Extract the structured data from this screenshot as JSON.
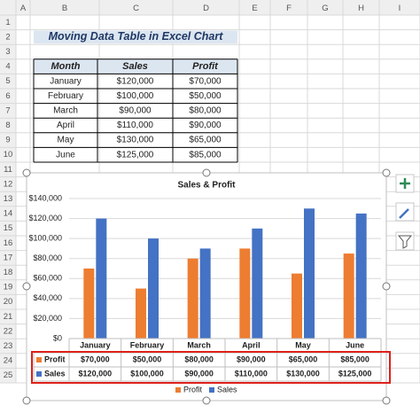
{
  "sheet": {
    "columns": [
      "A",
      "B",
      "C",
      "D",
      "E",
      "F",
      "G",
      "H",
      "I"
    ],
    "rows": [
      1,
      2,
      3,
      4,
      5,
      6,
      7,
      8,
      9,
      10,
      11,
      12,
      13,
      14,
      15,
      16,
      17,
      18,
      19,
      20,
      21,
      22,
      23,
      24,
      25
    ]
  },
  "title": "Moving Data Table in Excel Chart",
  "table": {
    "header": [
      "Month",
      "Sales",
      "Profit"
    ],
    "rows": [
      [
        "January",
        "$120,000",
        "$70,000"
      ],
      [
        "February",
        "$100,000",
        "$50,000"
      ],
      [
        "March",
        "$90,000",
        "$80,000"
      ],
      [
        "April",
        "$110,000",
        "$90,000"
      ],
      [
        "May",
        "$130,000",
        "$65,000"
      ],
      [
        "June",
        "$125,000",
        "$85,000"
      ]
    ]
  },
  "chart_data": {
    "type": "bar",
    "title": "Sales & Profit",
    "categories": [
      "January",
      "February",
      "March",
      "April",
      "May",
      "June"
    ],
    "series": [
      {
        "name": "Profit",
        "color": "#ed7d31",
        "values": [
          70000,
          50000,
          80000,
          90000,
          65000,
          85000
        ],
        "value_labels": [
          "$70,000",
          "$50,000",
          "$80,000",
          "$90,000",
          "$65,000",
          "$85,000"
        ]
      },
      {
        "name": "Sales",
        "color": "#4472c4",
        "values": [
          120000,
          100000,
          90000,
          110000,
          130000,
          125000
        ],
        "value_labels": [
          "$120,000",
          "$100,000",
          "$90,000",
          "$110,000",
          "$130,000",
          "$125,000"
        ]
      }
    ],
    "ylim": [
      0,
      140000
    ],
    "yticks": [
      {
        "value": 0,
        "label": "$0"
      },
      {
        "value": 20000,
        "label": "$20,000"
      },
      {
        "value": 40000,
        "label": "$40,000"
      },
      {
        "value": 60000,
        "label": "$60,000"
      },
      {
        "value": 80000,
        "label": "$80,000"
      },
      {
        "value": 100000,
        "label": "$100,000"
      },
      {
        "value": 120000,
        "label": "$120,000"
      },
      {
        "value": 140000,
        "label": "$140,000"
      }
    ],
    "grid": true,
    "data_table": true,
    "legend": "bottom"
  }
}
